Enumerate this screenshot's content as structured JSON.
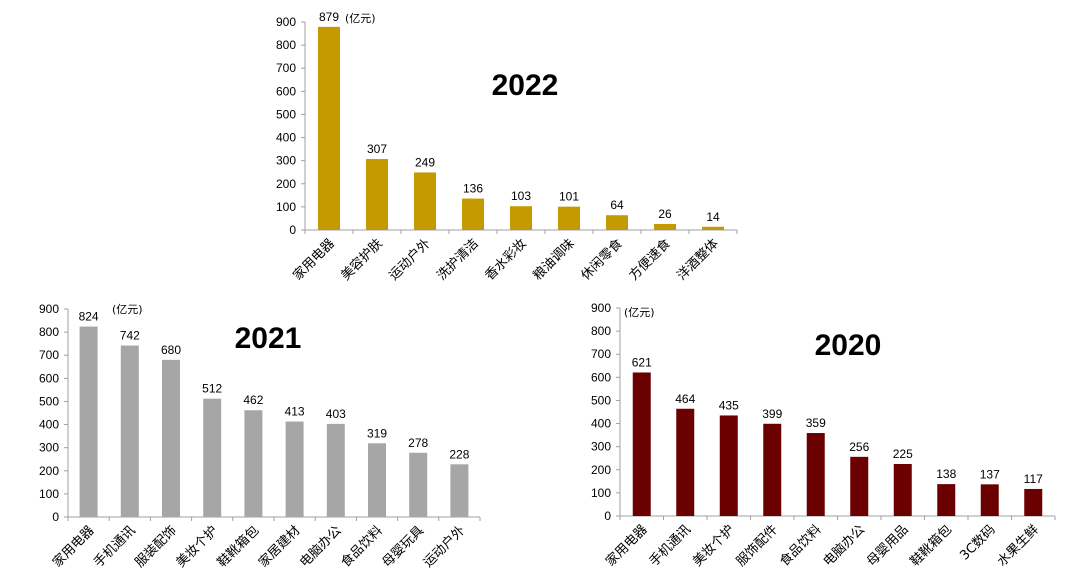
{
  "chart_data": [
    {
      "type": "bar",
      "title": "2022",
      "unit": "(亿元)",
      "color": "#C49A00",
      "ylim": [
        0,
        900
      ],
      "yticks": [
        0,
        100,
        200,
        300,
        400,
        500,
        600,
        700,
        800,
        900
      ],
      "categories": [
        "家用电器",
        "美容护肤",
        "运动户外",
        "洗护清洁",
        "香水彩妆",
        "粮油调味",
        "休闲零食",
        "方便速食",
        "洋酒整体"
      ],
      "values": [
        879,
        307,
        249,
        136,
        103,
        101,
        64,
        26,
        14
      ]
    },
    {
      "type": "bar",
      "title": "2021",
      "unit": "(亿元)",
      "color": "#A6A6A6",
      "ylim": [
        0,
        900
      ],
      "yticks": [
        0,
        100,
        200,
        300,
        400,
        500,
        600,
        700,
        800,
        900
      ],
      "categories": [
        "家用电器",
        "手机通讯",
        "服装配饰",
        "美妆个护",
        "鞋靴箱包",
        "家居建材",
        "电脑办公",
        "食品饮料",
        "母婴玩具",
        "运动户外"
      ],
      "values": [
        824,
        742,
        680,
        512,
        462,
        413,
        403,
        319,
        278,
        228
      ]
    },
    {
      "type": "bar",
      "title": "2020",
      "unit": "(亿元)",
      "color": "#6B0000",
      "ylim": [
        0,
        900
      ],
      "yticks": [
        0,
        100,
        200,
        300,
        400,
        500,
        600,
        700,
        800,
        900
      ],
      "categories": [
        "家用电器",
        "手机通讯",
        "美妆个护",
        "服饰配件",
        "食品饮料",
        "电脑办公",
        "母婴用品",
        "鞋靴箱包",
        "3C数码",
        "水果生鲜"
      ],
      "values": [
        621,
        464,
        435,
        399,
        359,
        256,
        225,
        138,
        137,
        117
      ]
    }
  ]
}
